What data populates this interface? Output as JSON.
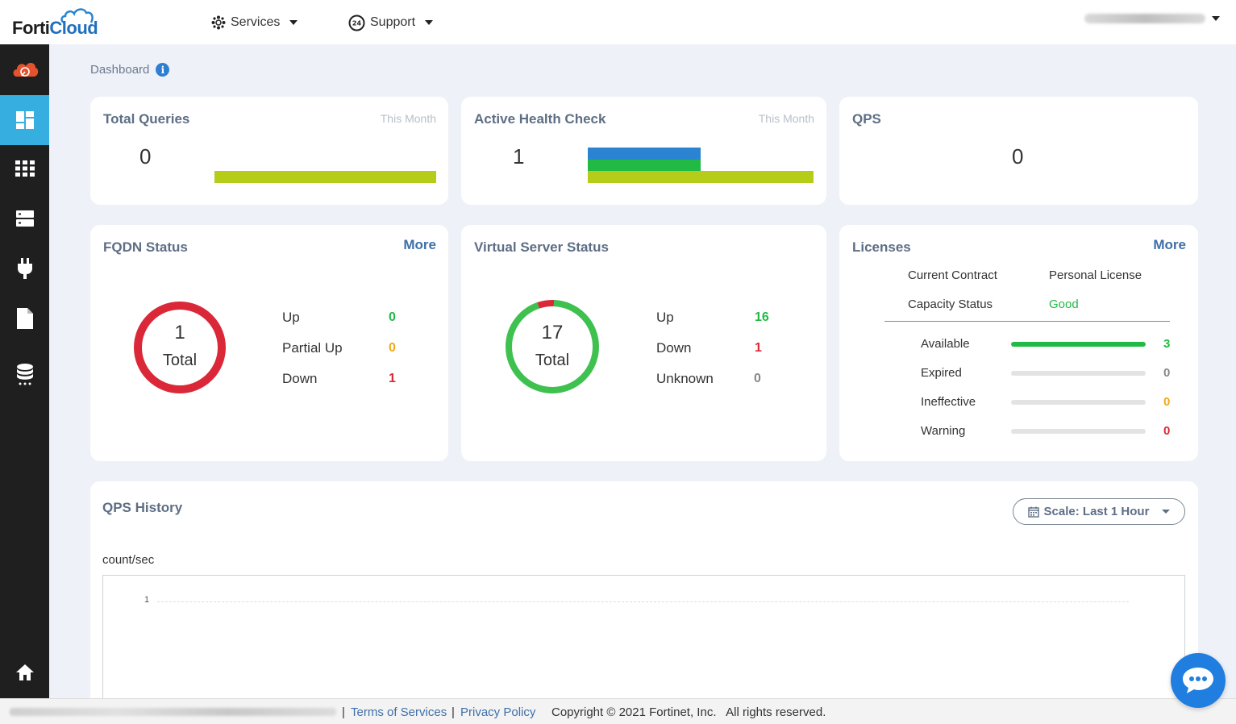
{
  "app": {
    "logo_forti": "Forti",
    "logo_cloud": "Cloud"
  },
  "nav": {
    "services_label": "Services",
    "support_label": "Support"
  },
  "sidebar": {
    "items": [
      {
        "icon": "cloud-logo-icon"
      },
      {
        "icon": "dashboard-icon",
        "active": true
      },
      {
        "icon": "grid-icon"
      },
      {
        "icon": "server-icon"
      },
      {
        "icon": "plug-icon"
      },
      {
        "icon": "document-icon"
      },
      {
        "icon": "database-icon"
      },
      {
        "icon": "home-icon"
      }
    ]
  },
  "breadcrumb": {
    "title": "Dashboard",
    "info_glyph": "i"
  },
  "total_queries": {
    "title": "Total Queries",
    "period": "This Month",
    "value": "0",
    "bar_color": "#b5cc18"
  },
  "active_health_check": {
    "title": "Active Health Check",
    "period": "This Month",
    "value": "1",
    "bars": [
      {
        "color": "#2a84d2",
        "fraction": 0.5
      },
      {
        "color": "#21ba45",
        "fraction": 0.5
      },
      {
        "color": "#b5cc18",
        "fraction": 1.0
      }
    ]
  },
  "qps": {
    "title": "QPS",
    "value": "0"
  },
  "fqdn_status": {
    "title": "FQDN Status",
    "more": "More",
    "total_value": "1",
    "total_label": "Total",
    "rows": [
      {
        "label": "Up",
        "value": "0",
        "color": "#21ba45"
      },
      {
        "label": "Partial Up",
        "value": "0",
        "color": "#f2a71b"
      },
      {
        "label": "Down",
        "value": "1",
        "color": "#db2838"
      }
    ],
    "ring_color": "#db2838"
  },
  "virtual_server_status": {
    "title": "Virtual Server Status",
    "total_value": "17",
    "total_label": "Total",
    "rows": [
      {
        "label": "Up",
        "value": "16",
        "color": "#21ba45"
      },
      {
        "label": "Down",
        "value": "1",
        "color": "#db2838"
      },
      {
        "label": "Unknown",
        "value": "0",
        "color": "#888888"
      }
    ],
    "ring_up_color": "#3ec14f",
    "ring_down_color": "#db2838"
  },
  "licenses": {
    "title": "Licenses",
    "more": "More",
    "current_contract_label": "Current Contract",
    "current_contract_value": "Personal License",
    "capacity_status_label": "Capacity Status",
    "capacity_status_value": "Good",
    "rows": [
      {
        "label": "Available",
        "value": "3",
        "color": "#21ba45",
        "fraction": 1.0
      },
      {
        "label": "Expired",
        "value": "0",
        "color": "#888888",
        "fraction": 0
      },
      {
        "label": "Ineffective",
        "value": "0",
        "color": "#f2a71b",
        "fraction": 0
      },
      {
        "label": "Warning",
        "value": "0",
        "color": "#db2838",
        "fraction": 0
      }
    ]
  },
  "qps_history": {
    "title": "QPS History",
    "scale_label": "Scale: Last 1 Hour",
    "unit_label": "count/sec",
    "y_tick": "1"
  },
  "footer": {
    "terms": "Terms of Services",
    "privacy": "Privacy Policy",
    "copyright": "Copyright © 2021 Fortinet, Inc.   All rights reserved.",
    "separator": "|"
  }
}
